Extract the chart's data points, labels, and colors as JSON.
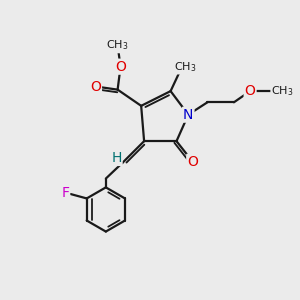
{
  "bg_color": "#ebebeb",
  "bond_color": "#1a1a1a",
  "bond_width": 1.6,
  "atom_colors": {
    "O": "#e00000",
    "N": "#0000cc",
    "F": "#cc00cc",
    "H": "#007070",
    "C": "#1a1a1a"
  },
  "font_size": 10,
  "font_size_label": 9,
  "font_size_methyl": 8.5
}
